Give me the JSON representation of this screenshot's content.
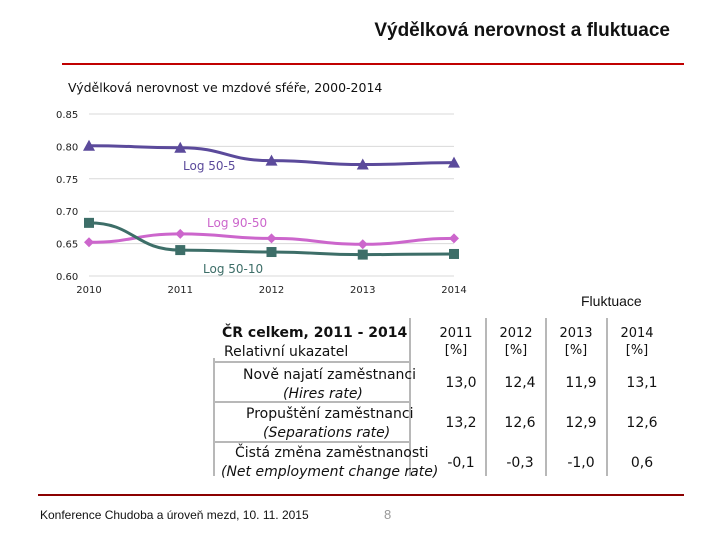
{
  "slide": {
    "title": "Výdělková nerovnost a fluktuace",
    "footer": "Konference Chudoba a úroveň mezd, 10. 11. 2015",
    "page_number": "8",
    "colors": {
      "accent_rule": "#c00000",
      "footer_rule": "#8b0000"
    }
  },
  "chart_data": {
    "type": "line",
    "title": "Výdělková nerovnost ve mzdové sféře, 2000-2014",
    "x": [
      "2010",
      "2011",
      "2012",
      "2013",
      "2014"
    ],
    "y_ticks": [
      "0.60",
      "0.65",
      "0.70",
      "0.75",
      "0.80",
      "0.85"
    ],
    "ylim": [
      0.6,
      0.85
    ],
    "grid": "horizontal",
    "legend": "inline labels",
    "series": [
      {
        "name": "Log 50-5",
        "color": "#5b4a9b",
        "marker": "triangle",
        "values": [
          0.801,
          0.798,
          0.778,
          0.772,
          0.775
        ]
      },
      {
        "name": "Log 90-50",
        "color": "#cc66cc",
        "marker": "diamond",
        "values": [
          0.652,
          0.665,
          0.658,
          0.649,
          0.658
        ]
      },
      {
        "name": "Log 50-10",
        "color": "#3d6e68",
        "marker": "square",
        "values": [
          0.682,
          0.64,
          0.637,
          0.633,
          0.634
        ]
      }
    ]
  },
  "fluctuation": {
    "label": "Fluktuace",
    "region": "ČR celkem, 2011 - 2014",
    "indicator_header": "Relativní ukazatel",
    "years": [
      "2011",
      "2012",
      "2013",
      "2014"
    ],
    "unit": "[%]",
    "rows": [
      {
        "label": "Nově najatí zaměstnanci",
        "sublabel": "(Hires rate)",
        "values": [
          "13,0",
          "12,4",
          "11,9",
          "13,1"
        ]
      },
      {
        "label": "Propuštění zaměstnanci",
        "sublabel": "(Separations rate)",
        "values": [
          "13,2",
          "12,6",
          "12,9",
          "12,6"
        ]
      },
      {
        "label": "Čistá změna zaměstnanosti",
        "sublabel": "(Net employment change rate)",
        "values": [
          "-0,1",
          "-0,3",
          "-1,0",
          "0,6"
        ]
      }
    ]
  }
}
